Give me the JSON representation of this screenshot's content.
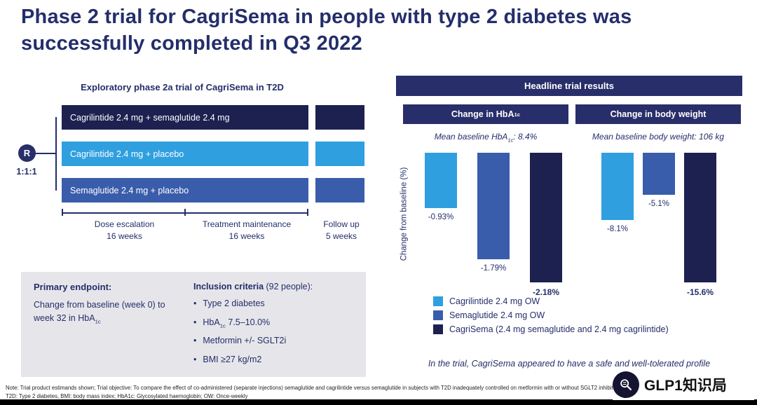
{
  "slide": {
    "title_line1": "Phase 2 trial for CagriSema in people with type 2 diabetes was",
    "title_line2": "successfully completed in Q3 2022"
  },
  "design": {
    "heading": "Exploratory phase 2a trial of CagriSema in T2D",
    "randomization_symbol": "R",
    "randomization_ratio": "1:1:1",
    "arms": [
      {
        "label": "Cagrilintide 2.4 mg + semaglutide 2.4 mg",
        "color": "#1c2150"
      },
      {
        "label": "Cagrilintide 2.4 mg + placebo",
        "color": "#2f9fe0"
      },
      {
        "label": "Semaglutide 2.4 mg + placebo",
        "color": "#3a5dab"
      }
    ],
    "phases": [
      {
        "line1": "Dose escalation",
        "line2": "16 weeks"
      },
      {
        "line1": "Treatment maintenance",
        "line2": "16 weeks"
      },
      {
        "line1": "Follow up",
        "line2": "5 weeks"
      }
    ]
  },
  "endpoint_box": {
    "bullet_char": "•",
    "primary_label": "Primary endpoint:",
    "primary_text_pre": "Change from baseline (week 0) to week 32 in HbA",
    "primary_text_sub": "1c",
    "inclusion_label_bold": "Inclusion criteria",
    "inclusion_label_rest": " (92 people):",
    "bullets": [
      {
        "pre": "Type 2 diabetes",
        "sub": "",
        "post": ""
      },
      {
        "pre": "HbA",
        "sub": "1c",
        "post": " 7.5–10.0%"
      },
      {
        "pre": "Metformin +/- SGLT2i",
        "sub": "",
        "post": ""
      },
      {
        "pre": "BMI ≥27 kg/m2",
        "sub": "",
        "post": ""
      }
    ]
  },
  "results": {
    "header": "Headline trial results",
    "y_axis_label": "Change from baseline (%)",
    "hba1c": {
      "header_pre": "Change in HbA",
      "header_sub": "1c",
      "baseline_pre": "Mean baseline HbA",
      "baseline_sub": "1c",
      "baseline_post": ": 8.4%",
      "bars": [
        {
          "label": "-0.93%",
          "value": -0.93
        },
        {
          "label": "-1.79%",
          "value": -1.79
        },
        {
          "label": "-2.18%",
          "value": -2.18
        }
      ]
    },
    "weight": {
      "header": "Change in body weight",
      "baseline": "Mean baseline body weight: 106 kg",
      "bars": [
        {
          "label": "-8.1%",
          "value": -8.1
        },
        {
          "label": "-5.1%",
          "value": -5.1
        },
        {
          "label": "-15.6%",
          "value": -15.6
        }
      ]
    },
    "legend": [
      {
        "label": "Cagrilintide 2.4 mg OW",
        "color": "#2f9fe0"
      },
      {
        "label": "Semaglutide 2.4 mg OW",
        "color": "#3a5dab"
      },
      {
        "label": "CagriSema (2.4 mg semaglutide and 2.4 mg cagrilintide)",
        "color": "#1c2150"
      }
    ],
    "conclusion": "In the trial, CagriSema appeared to have a safe and well-tolerated profile"
  },
  "footnote": {
    "line1": "Note: Trial product estimands shown; Trial objective: To compare the effect of co-administered (separate injections) semaglutide and cagrilintide versus semaglutide in subjects with T2D inadequately controlled on metformin with or without SGLT2 inhibitor",
    "line2": "T2D: Type 2 diabetes, BMI: body mass index; HbA1c: Glycosylated haemoglobin; OW: Once-weekly"
  },
  "watermark": {
    "text": "GLP1知识局",
    "icon": "magnifier-icon"
  },
  "colors": {
    "title_navy": "#242e6b",
    "header_bg": "#282e69",
    "cagrilintide_blue": "#2f9fe0",
    "semaglutide_blue": "#3a5dab",
    "cagrisema_navy": "#1c2150",
    "panel_gray": "#e6e6ea"
  },
  "chart_data": [
    {
      "type": "bar",
      "title": "Change in HbA1c",
      "subtitle": "Mean baseline HbA1c: 8.4%",
      "categories": [
        "Cagrilintide 2.4 mg OW",
        "Semaglutide 2.4 mg OW",
        "CagriSema (2.4 mg semaglutide and 2.4 mg cagrilintide)"
      ],
      "values": [
        -0.93,
        -1.79,
        -2.18
      ],
      "data_labels": [
        "-0.93%",
        "-1.79%",
        "-2.18%"
      ],
      "ylabel": "Change from baseline (%)",
      "ylim": [
        -2.5,
        0
      ],
      "grid": false,
      "legend_position": "below"
    },
    {
      "type": "bar",
      "title": "Change in body weight",
      "subtitle": "Mean baseline body weight: 106 kg",
      "categories": [
        "Cagrilintide 2.4 mg OW",
        "Semaglutide 2.4 mg OW",
        "CagriSema (2.4 mg semaglutide and 2.4 mg cagrilintide)"
      ],
      "values": [
        -8.1,
        -5.1,
        -15.6
      ],
      "data_labels": [
        "-8.1%",
        "-5.1%",
        "-15.6%"
      ],
      "ylabel": "Change from baseline (%)",
      "ylim": [
        -17,
        0
      ],
      "grid": false,
      "legend_position": "below"
    }
  ]
}
